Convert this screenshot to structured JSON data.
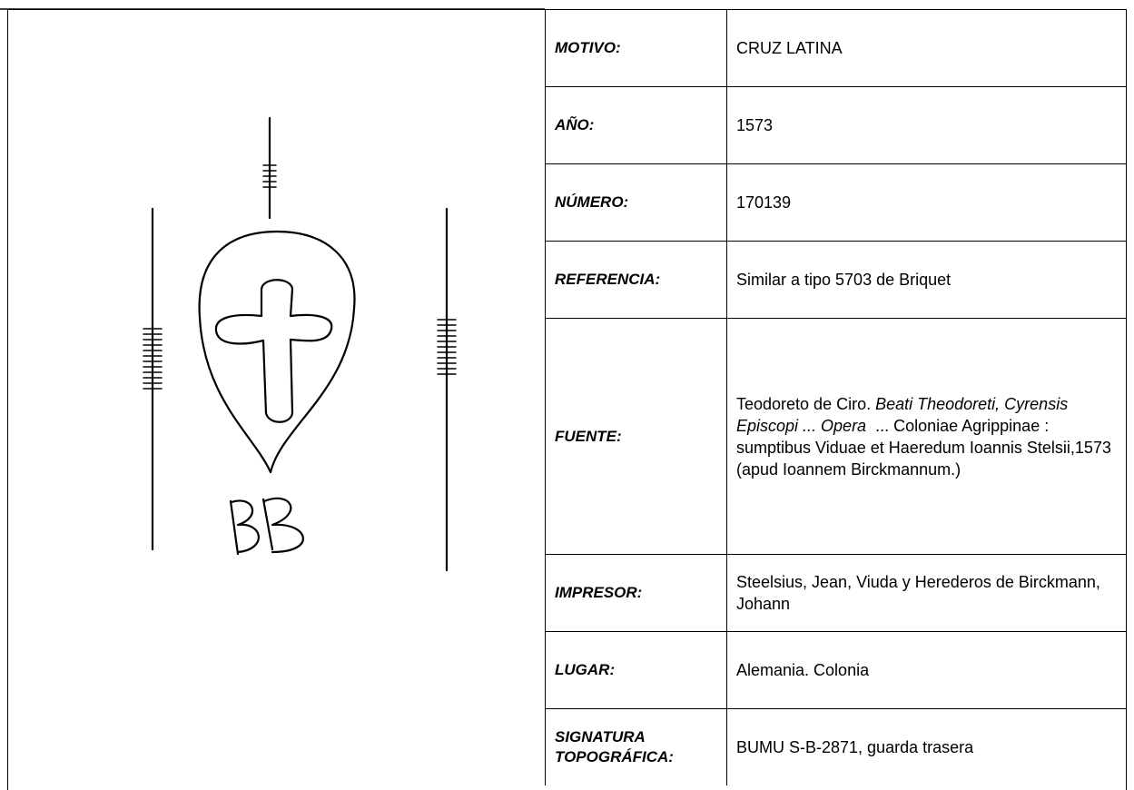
{
  "table": {
    "rows": [
      {
        "label": "MOTIVO:",
        "value": [
          "CRUZ LATINA"
        ]
      },
      {
        "label": "AÑO:",
        "value": [
          "1573"
        ]
      },
      {
        "label": "NÚMERO:",
        "value": [
          "170139"
        ]
      },
      {
        "label": "REFERENCIA:",
        "value": [
          "Similar a tipo 5703 de Briquet"
        ]
      },
      {
        "label": "FUENTE:",
        "value": [
          "Teodoreto de Ciro. ",
          "Beati Theodoreti, Cyrensis Episcopi ... Opera",
          "  ... Coloniae Agrippinae : sumptibus Viduae et Haeredum Ioannis Stelsii,1573 (apud Ioannem Birckmannum.)"
        ]
      },
      {
        "label": "IMPRESOR:",
        "value": [
          "Steelsius, Jean, Viuda y Herederos de Birckmann, Johann"
        ]
      },
      {
        "label": "LUGAR:",
        "value": [
          "Alemania. Colonia"
        ]
      },
      {
        "label": "SIGNATURA TOPOGRÁFICA:",
        "value": [
          "BUMU S-B-2871, guarda trasera"
        ]
      }
    ]
  }
}
